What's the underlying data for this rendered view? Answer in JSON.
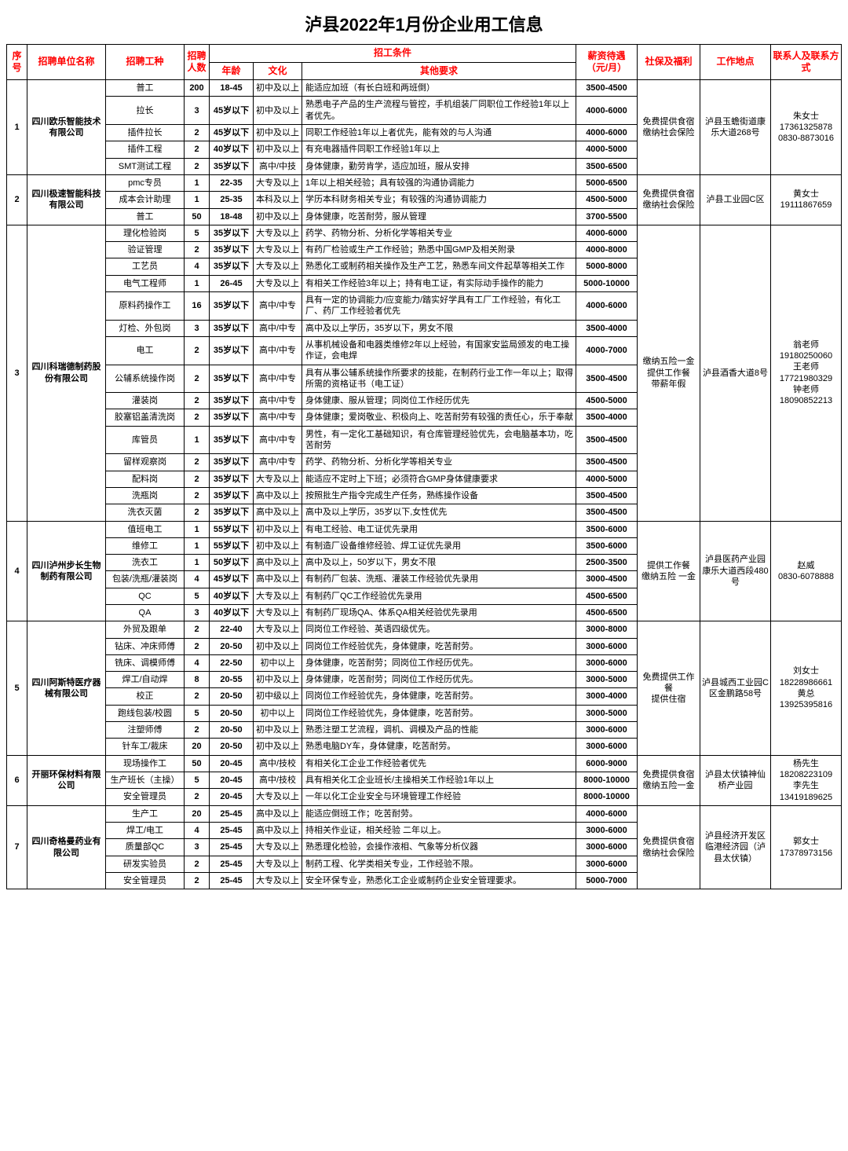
{
  "title": "泸县2022年1月份企业用工信息",
  "headers": {
    "seq": "序号",
    "company": "招聘单位名称",
    "position": "招聘工种",
    "count": "招聘人数",
    "conditions": "招工条件",
    "age": "年龄",
    "edu": "文化",
    "req": "其他要求",
    "salary": "薪资待遇（元/月）",
    "welfare": "社保及福利",
    "location": "工作地点",
    "contact": "联系人及联系方式"
  },
  "companies": [
    {
      "seq": "1",
      "name": "四川欧乐智能技术有限公司",
      "welfare": "免费提供食宿\n缴纳社会保险",
      "location": "泸县玉蟾街道康乐大道268号",
      "contact": "朱女士\n17361325878\n0830-8873016",
      "jobs": [
        {
          "position": "普工",
          "count": "200",
          "age": "18-45",
          "edu": "初中及以上",
          "req": "能适应加班（有长白班和两班倒）",
          "salary": "3500-4500"
        },
        {
          "position": "拉长",
          "count": "3",
          "age": "45岁以下",
          "edu": "初中及以上",
          "req": "熟悉电子产品的生产流程与管控，手机组装厂同职位工作经验1年以上者优先。",
          "salary": "4000-6000"
        },
        {
          "position": "插件拉长",
          "count": "2",
          "age": "45岁以下",
          "edu": "初中及以上",
          "req": "同职工作经验1年以上者优先，能有效的与人沟通",
          "salary": "4000-6000"
        },
        {
          "position": "插件工程",
          "count": "2",
          "age": "40岁以下",
          "edu": "初中及以上",
          "req": "有充电器插件同职工作经验1年以上",
          "salary": "4000-5000"
        },
        {
          "position": "SMT测试工程",
          "count": "2",
          "age": "35岁以下",
          "edu": "高中/中技",
          "req": "身体健康，勤劳肯学，适应加班，服从安排",
          "salary": "3500-6500"
        }
      ]
    },
    {
      "seq": "2",
      "name": "四川极速智能科技有限公司",
      "welfare": "免费提供食宿\n缴纳社会保险",
      "location": "泸县工业园C区",
      "contact": "黄女士\n19111867659",
      "jobs": [
        {
          "position": "pmc专员",
          "count": "1",
          "age": "22-35",
          "edu": "大专及以上",
          "req": "1年以上相关经验；具有较强的沟通协调能力",
          "salary": "5000-6500"
        },
        {
          "position": "成本会计助理",
          "count": "1",
          "age": "25-35",
          "edu": "本科及以上",
          "req": "学历本科财务相关专业；有较强的沟通协调能力",
          "salary": "4500-5000"
        },
        {
          "position": "普工",
          "count": "50",
          "age": "18-48",
          "edu": "初中及以上",
          "req": "身体健康，吃苦耐劳，服从管理",
          "salary": "3700-5500"
        }
      ]
    },
    {
      "seq": "3",
      "name": "四川科瑞德制药股份有限公司",
      "welfare": "缴纳五险一金\n提供工作餐\n带薪年假",
      "location": "泸县酒香大道8号",
      "contact": "翁老师\n19180250060\n王老师\n17721980329\n钟老师\n18090852213",
      "jobs": [
        {
          "position": "理化检验岗",
          "count": "5",
          "age": "35岁以下",
          "edu": "大专及以上",
          "req": "药学、药物分析、分析化学等相关专业",
          "salary": "4000-6000"
        },
        {
          "position": "验证管理",
          "count": "2",
          "age": "35岁以下",
          "edu": "大专及以上",
          "req": "有药厂检验或生产工作经验；熟悉中国GMP及相关附录",
          "salary": "4000-8000"
        },
        {
          "position": "工艺员",
          "count": "4",
          "age": "35岁以下",
          "edu": "大专及以上",
          "req": "熟悉化工或制药相关操作及生产工艺，熟悉车间文件起草等相关工作",
          "salary": "5000-8000"
        },
        {
          "position": "电气工程师",
          "count": "1",
          "age": "26-45",
          "edu": "大专及以上",
          "req": "有相关工作经验3年以上；持有电工证，有实际动手操作的能力",
          "salary": "5000-10000"
        },
        {
          "position": "原料药操作工",
          "count": "16",
          "age": "35岁以下",
          "edu": "高中/中专",
          "req": "具有一定的协调能力/应变能力/踏实好学具有工厂工作经验，有化工厂、药厂工作经验者优先",
          "salary": "4000-6000"
        },
        {
          "position": "灯检、外包岗",
          "count": "3",
          "age": "35岁以下",
          "edu": "高中/中专",
          "req": "高中及以上学历，35岁以下，男女不限",
          "salary": "3500-4000"
        },
        {
          "position": "电工",
          "count": "2",
          "age": "35岁以下",
          "edu": "高中/中专",
          "req": "从事机械设备和电器类维修2年以上经验，有国家安监局颁发的电工操作证，会电焊",
          "salary": "4000-7000"
        },
        {
          "position": "公辅系统操作岗",
          "count": "2",
          "age": "35岁以下",
          "edu": "高中/中专",
          "req": "具有从事公辅系统操作所要求的技能，在制药行业工作一年以上；取得所需的资格证书（电工证）",
          "salary": "3500-4500"
        },
        {
          "position": "灌装岗",
          "count": "2",
          "age": "35岁以下",
          "edu": "高中/中专",
          "req": "身体健康、服从管理；同岗位工作经历优先",
          "salary": "4500-5000"
        },
        {
          "position": "胶塞铝盖清洗岗",
          "count": "2",
          "age": "35岁以下",
          "edu": "高中/中专",
          "req": "身体健康；爱岗敬业、积极向上、吃苦耐劳有较强的责任心，乐于奉献",
          "salary": "3500-4000"
        },
        {
          "position": "库管员",
          "count": "1",
          "age": "35岁以下",
          "edu": "高中/中专",
          "req": "男性，有一定化工基础知识，有仓库管理经验优先，会电脑基本功，吃苦耐劳",
          "salary": "3500-4500"
        },
        {
          "position": "留样观察岗",
          "count": "2",
          "age": "35岁以下",
          "edu": "高中/中专",
          "req": "药学、药物分析、分析化学等相关专业",
          "salary": "3500-4500"
        },
        {
          "position": "配料岗",
          "count": "2",
          "age": "35岁以下",
          "edu": "大专及以上",
          "req": "能适应不定时上下班；必须符合GMP身体健康要求",
          "salary": "4000-5000"
        },
        {
          "position": "洗瓶岗",
          "count": "2",
          "age": "35岁以下",
          "edu": "高中及以上",
          "req": "按照批生产指令完成生产任务，熟练操作设备",
          "salary": "3500-4500"
        },
        {
          "position": "洗衣灭菌",
          "count": "2",
          "age": "35岁以下",
          "edu": "高中及以上",
          "req": "高中及以上学历，35岁以下,女性优先",
          "salary": "3500-4500"
        }
      ]
    },
    {
      "seq": "4",
      "name": "四川泸州步长生物制药有限公司",
      "welfare": "提供工作餐\n缴纳五险 一金",
      "location": "泸县医药产业园康乐大道西段480号",
      "contact": "赵威\n0830-6078888",
      "jobs": [
        {
          "position": "值班电工",
          "count": "1",
          "age": "55岁以下",
          "edu": "初中及以上",
          "req": "有电工经验、电工证优先录用",
          "salary": "3500-6000"
        },
        {
          "position": "维修工",
          "count": "1",
          "age": "55岁以下",
          "edu": "初中及以上",
          "req": "有制造厂设备维修经验、焊工证优先录用",
          "salary": "3500-6000"
        },
        {
          "position": "洗衣工",
          "count": "1",
          "age": "50岁以下",
          "edu": "高中及以上",
          "req": "高中及以上，50岁以下，男女不限",
          "salary": "2500-3500"
        },
        {
          "position": "包装/洗瓶/灌装岗",
          "count": "4",
          "age": "45岁以下",
          "edu": "高中及以上",
          "req": "有制药厂包装、洗瓶、灌装工作经验优先录用",
          "salary": "3000-4500"
        },
        {
          "position": "QC",
          "count": "5",
          "age": "40岁以下",
          "edu": "大专及以上",
          "req": "有制药厂QC工作经验优先录用",
          "salary": "4500-6500"
        },
        {
          "position": "QA",
          "count": "3",
          "age": "40岁以下",
          "edu": "大专及以上",
          "req": "有制药厂现场QA、体系QA相关经验优先录用",
          "salary": "4500-6500"
        }
      ]
    },
    {
      "seq": "5",
      "name": "四川阿斯特医疗器械有限公司",
      "welfare": "免费提供工作餐\n提供住宿",
      "location": "泸县城西工业园C区金鹏路58号",
      "contact": "刘女士\n18228986661\n黄总\n13925395816",
      "jobs": [
        {
          "position": "外贸及跟单",
          "count": "2",
          "age": "22-40",
          "edu": "大专及以上",
          "req": "同岗位工作经验、英语四级优先。",
          "salary": "3000-8000"
        },
        {
          "position": "钻床、冲床师傅",
          "count": "2",
          "age": "20-50",
          "edu": "初中及以上",
          "req": "同岗位工作经验优先，身体健康，吃苦耐劳。",
          "salary": "3000-6000"
        },
        {
          "position": "铣床、调模师傅",
          "count": "4",
          "age": "22-50",
          "edu": "初中以上",
          "req": "身体健康，吃苦耐劳；同岗位工作经历优先。",
          "salary": "3000-6000"
        },
        {
          "position": "焊工/自动焊",
          "count": "8",
          "age": "20-55",
          "edu": "初中及以上",
          "req": "身体健康，吃苦耐劳；同岗位工作经历优先。",
          "salary": "3000-5000"
        },
        {
          "position": "校正",
          "count": "2",
          "age": "20-50",
          "edu": "初中级以上",
          "req": "同岗位工作经验优先，身体健康，吃苦耐劳。",
          "salary": "3000-4000"
        },
        {
          "position": "跑线包装/校圆",
          "count": "5",
          "age": "20-50",
          "edu": "初中以上",
          "req": "同岗位工作经验优先，身体健康，吃苦耐劳。",
          "salary": "3000-5000"
        },
        {
          "position": "注塑师傅",
          "count": "2",
          "age": "20-50",
          "edu": "初中及以上",
          "req": "熟悉注塑工艺流程，调机、调模及产品的性能",
          "salary": "3000-6000"
        },
        {
          "position": "针车工/裁床",
          "count": "20",
          "age": "20-50",
          "edu": "初中及以上",
          "req": "熟悉电脑DY车，身体健康，吃苦耐劳。",
          "salary": "3000-6000"
        }
      ]
    },
    {
      "seq": "6",
      "name": "开丽环保材料有限公司",
      "welfare": "免费提供食宿\n缴纳五险一金",
      "location": "泸县太伏镇神仙桥产业园",
      "contact": "杨先生\n18208223109\n李先生\n13419189625",
      "jobs": [
        {
          "position": "现场操作工",
          "count": "50",
          "age": "20-45",
          "edu": "高中/技校",
          "req": "有相关化工企业工作经验者优先",
          "salary": "6000-9000"
        },
        {
          "position": "生产班长（主操）",
          "count": "5",
          "age": "20-45",
          "edu": "高中/技校",
          "req": "具有相关化工企业班长/主操相关工作经验1年以上",
          "salary": "8000-10000"
        },
        {
          "position": "安全管理员",
          "count": "2",
          "age": "20-45",
          "edu": "大专及以上",
          "req": "一年以化工企业安全与环境管理工作经验",
          "salary": "8000-10000"
        }
      ]
    },
    {
      "seq": "7",
      "name": "四川奇格曼药业有限公司",
      "welfare": "免费提供食宿\n缴纳社会保险",
      "location": "泸县经济开发区临港经济园（泸县太伏镇）",
      "contact": "郭女士\n17378973156",
      "jobs": [
        {
          "position": "生产工",
          "count": "20",
          "age": "25-45",
          "edu": "高中及以上",
          "req": "能适应倒班工作；吃苦耐劳。",
          "salary": "4000-6000"
        },
        {
          "position": "焊工/电工",
          "count": "4",
          "age": "25-45",
          "edu": "高中及以上",
          "req": "持相关作业证，相关经验 二年以上。",
          "salary": "3000-6000"
        },
        {
          "position": "质量部QC",
          "count": "3",
          "age": "25-45",
          "edu": "大专及以上",
          "req": "熟悉理化检验，会操作液相、气象等分析仪器",
          "salary": "3000-6000"
        },
        {
          "position": "研发实验员",
          "count": "2",
          "age": "25-45",
          "edu": "大专及以上",
          "req": "制药工程、化学类相关专业，工作经验不限。",
          "salary": "3000-6000"
        },
        {
          "position": "安全管理员",
          "count": "2",
          "age": "25-45",
          "edu": "大专及以上",
          "req": "安全环保专业，熟悉化工企业或制药企业安全管理要求。",
          "salary": "5000-7000"
        }
      ]
    }
  ]
}
